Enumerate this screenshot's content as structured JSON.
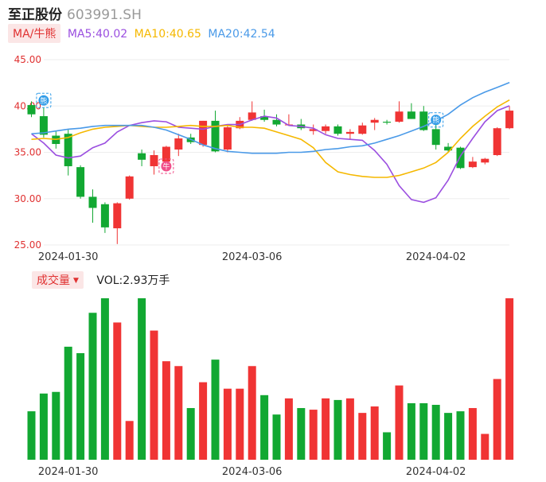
{
  "header": {
    "name": "至正股份",
    "code": "603991.SH"
  },
  "ma_legend": {
    "mode": "MA/牛熊",
    "items": [
      {
        "label": "MA5:40.02",
        "color": "#9b4fe0"
      },
      {
        "label": "MA10:40.65",
        "color": "#f5b800"
      },
      {
        "label": "MA20:42.54",
        "color": "#4a9ae8"
      }
    ]
  },
  "volume_legend": {
    "mode": "成交量",
    "label": "VOL:2.93万手"
  },
  "badges": {
    "bull": "牛",
    "bear": "熊"
  },
  "colors": {
    "up": "#f03434",
    "down": "#12a832",
    "grid": "#eeeeee",
    "axis": "#e03131"
  },
  "chart_data": [
    {
      "type": "candlestick",
      "ylim": [
        25,
        45
      ],
      "yticks": [
        "45.00",
        "40.00",
        "35.00",
        "30.00",
        "25.00"
      ],
      "xtick_labels": [
        {
          "index": 3,
          "label": "2024-01-30"
        },
        {
          "index": 18,
          "label": "2024-03-06"
        },
        {
          "index": 33,
          "label": "2024-04-02"
        }
      ],
      "ohlc": [
        [
          40.1,
          40.5,
          38.8,
          39.1
        ],
        [
          38.9,
          39.8,
          36.6,
          36.9
        ],
        [
          36.8,
          37.3,
          35.4,
          35.9
        ],
        [
          37.0,
          37.5,
          32.5,
          33.5
        ],
        [
          33.4,
          33.6,
          30.0,
          30.2
        ],
        [
          30.2,
          31.0,
          27.4,
          29.0
        ],
        [
          29.4,
          29.6,
          26.3,
          26.9
        ],
        [
          26.8,
          29.6,
          25.1,
          29.5
        ],
        [
          30.0,
          32.5,
          29.9,
          32.4
        ],
        [
          34.9,
          35.3,
          33.5,
          34.2
        ],
        [
          33.5,
          35.2,
          32.6,
          34.7
        ],
        [
          34.0,
          35.7,
          33.5,
          35.6
        ],
        [
          35.3,
          37.0,
          34.6,
          36.5
        ],
        [
          36.6,
          37.0,
          35.9,
          36.1
        ],
        [
          35.8,
          38.4,
          35.6,
          38.4
        ],
        [
          38.4,
          39.5,
          35.0,
          35.1
        ],
        [
          35.3,
          37.9,
          35.0,
          37.7
        ],
        [
          37.6,
          38.8,
          37.5,
          38.4
        ],
        [
          38.5,
          40.5,
          38.4,
          39.3
        ],
        [
          38.9,
          39.6,
          38.3,
          38.5
        ],
        [
          38.5,
          39.1,
          37.8,
          38.0
        ],
        [
          38.0,
          39.1,
          37.9,
          38.0
        ],
        [
          38.0,
          38.6,
          37.4,
          37.6
        ],
        [
          37.3,
          38.0,
          36.9,
          37.5
        ],
        [
          37.3,
          38.0,
          37.0,
          37.8
        ],
        [
          37.8,
          38.0,
          36.8,
          37.0
        ],
        [
          37.0,
          37.5,
          36.4,
          37.2
        ],
        [
          37.0,
          38.2,
          36.9,
          37.9
        ],
        [
          38.2,
          38.7,
          37.4,
          38.5
        ],
        [
          38.3,
          38.5,
          38.0,
          38.2
        ],
        [
          38.3,
          40.5,
          38.2,
          39.4
        ],
        [
          39.4,
          40.3,
          38.6,
          38.6
        ],
        [
          39.4,
          40.0,
          37.3,
          37.4
        ],
        [
          37.5,
          38.5,
          35.3,
          35.8
        ],
        [
          35.6,
          36.0,
          35.0,
          35.2
        ],
        [
          35.5,
          35.6,
          33.2,
          33.3
        ],
        [
          33.4,
          34.5,
          33.3,
          34.0
        ],
        [
          33.9,
          34.4,
          33.7,
          34.3
        ],
        [
          34.7,
          37.7,
          34.6,
          37.6
        ],
        [
          37.6,
          40.0,
          37.5,
          39.5
        ]
      ],
      "ma5": [
        37.0,
        36.0,
        34.7,
        34.4,
        34.6,
        35.5,
        36.0,
        37.2,
        37.9,
        38.2,
        38.4,
        38.3,
        37.7,
        37.6,
        37.5,
        37.8,
        38.0,
        38.0,
        38.5,
        38.9,
        38.7,
        37.9,
        37.8,
        37.6,
        36.9,
        36.5,
        36.4,
        36.3,
        35.2,
        33.7,
        31.4,
        29.9,
        29.6,
        30.1,
        32.0,
        34.6,
        36.5,
        38.3,
        39.5,
        40.02
      ],
      "ma10": [
        36.4,
        36.5,
        36.4,
        36.6,
        37.1,
        37.5,
        37.7,
        37.8,
        37.9,
        37.8,
        37.7,
        37.7,
        37.8,
        37.9,
        37.8,
        37.8,
        37.9,
        37.7,
        37.7,
        37.6,
        37.2,
        36.8,
        36.4,
        35.5,
        33.9,
        32.9,
        32.6,
        32.4,
        32.3,
        32.3,
        32.5,
        32.9,
        33.3,
        33.9,
        35.0,
        36.5,
        37.8,
        38.9,
        39.9,
        40.65
      ],
      "ma20": [
        37.0,
        37.1,
        37.3,
        37.5,
        37.6,
        37.8,
        37.9,
        37.9,
        37.9,
        37.9,
        37.7,
        37.4,
        36.9,
        36.4,
        35.8,
        35.4,
        35.1,
        35.0,
        34.9,
        34.9,
        34.9,
        35.0,
        35.0,
        35.1,
        35.3,
        35.4,
        35.6,
        35.7,
        36.0,
        36.4,
        36.8,
        37.3,
        37.8,
        38.4,
        39.1,
        40.1,
        40.9,
        41.5,
        42.0,
        42.54
      ],
      "badges": [
        {
          "index": 1,
          "kind": "bear",
          "price": 40.6
        },
        {
          "index": 11,
          "kind": "bull",
          "price": 33.5
        },
        {
          "index": 33,
          "kind": "bear",
          "price": 38.5
        }
      ]
    },
    {
      "type": "bar",
      "ylim": [
        0,
        1.0
      ],
      "values": [
        0.3,
        0.41,
        0.42,
        0.7,
        0.66,
        0.91,
        1.0,
        0.85,
        0.24,
        1.0,
        0.8,
        0.61,
        0.58,
        0.32,
        0.48,
        0.62,
        0.44,
        0.44,
        0.58,
        0.4,
        0.28,
        0.38,
        0.32,
        0.31,
        0.38,
        0.37,
        0.38,
        0.29,
        0.33,
        0.17,
        0.46,
        0.35,
        0.35,
        0.34,
        0.29,
        0.3,
        0.32,
        0.16,
        0.5,
        1.0
      ]
    }
  ]
}
